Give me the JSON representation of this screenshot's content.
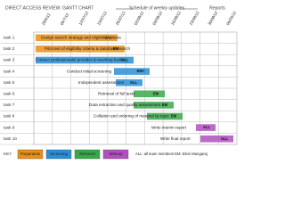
{
  "header": {
    "title": "DIRECT ACCESS REVIEW: GANTT CHART",
    "schedule": "Schedule of weekly updates",
    "reports": "Reports"
  },
  "dates": [
    "28/6/12",
    "05/7/12",
    "12/07/12",
    "19/07/12",
    "26/07/12",
    "02/08/12",
    "09/08/12",
    "16/08/12",
    "23/08/12",
    "30/08/12",
    "06/09/12"
  ],
  "tasks": [
    {
      "id": "task 1",
      "description": "Design search strategy and eligibility criteria",
      "owner": "ALL"
    },
    {
      "id": "task 2",
      "description": "Pilot test of eligibility criteria & database search",
      "owner": "EM"
    },
    {
      "id": "task 3",
      "description": "Contact professionals/ provider & reaching bodies",
      "owner": "ALL"
    },
    {
      "id": "task 4",
      "description": "Conduct initial screening",
      "owner": "EM+"
    },
    {
      "id": "task 5",
      "description": "Independent assessment",
      "owner": "ALL"
    },
    {
      "id": "task 6",
      "description": "Retrieval of full texts",
      "owner": "EM"
    },
    {
      "id": "task 7",
      "description": "Data extraction and quality assessment",
      "owner": "EM"
    },
    {
      "id": "task 8",
      "description": "Collation and ordering of material by topic",
      "owner": "EM"
    },
    {
      "id": "task 9",
      "description": "Write interim report",
      "owner": "ALL"
    },
    {
      "id": "task 10",
      "description": "Write final report",
      "owner": "ALL"
    }
  ],
  "key": {
    "label": "KEY",
    "items": [
      "Preparation",
      "Screening",
      "Retrieval",
      "Writeup"
    ],
    "note": "ALL: all team members  EM: Eleni Mangaraj"
  }
}
